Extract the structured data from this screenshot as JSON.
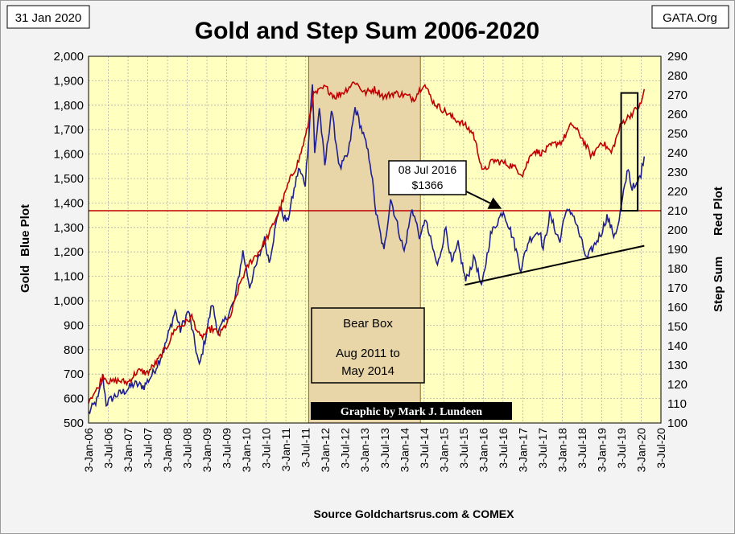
{
  "header": {
    "date": "31 Jan 2020",
    "title": "Gold and Step Sum 2006-2020",
    "source_tag": "GATA.Org"
  },
  "footer": {
    "source": "Source Goldchartsrus.com & COMEX",
    "credit": "Graphic by Mark J. Lundeen"
  },
  "colors": {
    "gold_line": "#1f1f8f",
    "step_sum_line": "#c00000",
    "plot_bg": "#ffffc0",
    "bear_box": "#e8d5a8",
    "reference_line": "#c00000"
  },
  "chart_data": {
    "type": "line",
    "title": "Gold and Step Sum 2006-2020",
    "x_tick_labels": [
      "3-Jan-06",
      "3-Jul-06",
      "3-Jan-07",
      "3-Jul-07",
      "3-Jan-08",
      "3-Jul-08",
      "3-Jan-09",
      "3-Jul-09",
      "3-Jan-10",
      "3-Jul-10",
      "3-Jan-11",
      "3-Jul-11",
      "3-Jan-12",
      "3-Jul-12",
      "3-Jan-13",
      "3-Jul-13",
      "3-Jan-14",
      "3-Jul-14",
      "3-Jan-15",
      "3-Jul-15",
      "3-Jan-16",
      "3-Jul-16",
      "3-Jan-17",
      "3-Jul-17",
      "3-Jan-18",
      "3-Jul-18",
      "3-Jan-19",
      "3-Jul-19",
      "3-Jan-20",
      "3-Jul-20"
    ],
    "xlim": [
      "2006-01-03",
      "2020-07-03"
    ],
    "y_left": {
      "label_top": "Gold",
      "label_bottom": "Blue Plot",
      "lim": [
        500,
        2000
      ],
      "ticks": [
        "500",
        "600",
        "700",
        "800",
        "900",
        "1,000",
        "1,100",
        "1,200",
        "1,300",
        "1,400",
        "1,500",
        "1,600",
        "1,700",
        "1,800",
        "1,900",
        "2,000"
      ]
    },
    "y_right": {
      "label_top": "Red Plot",
      "label_bottom": "Step Sum",
      "lim": [
        100,
        290
      ],
      "ticks": [
        "100",
        "110",
        "120",
        "130",
        "140",
        "150",
        "160",
        "170",
        "180",
        "190",
        "200",
        "210",
        "220",
        "230",
        "240",
        "250",
        "260",
        "270",
        "280",
        "290"
      ]
    },
    "grid": true,
    "series": [
      {
        "name": "Blue Plot",
        "axis": "left",
        "color": "#1f1f8f",
        "points": [
          [
            "2006-01-03",
            540
          ],
          [
            "2006-04-01",
            600
          ],
          [
            "2006-05-15",
            690
          ],
          [
            "2006-06-15",
            580
          ],
          [
            "2006-09-01",
            610
          ],
          [
            "2006-12-01",
            630
          ],
          [
            "2007-03-01",
            660
          ],
          [
            "2007-06-01",
            650
          ],
          [
            "2007-09-01",
            710
          ],
          [
            "2007-12-01",
            800
          ],
          [
            "2008-03-15",
            960
          ],
          [
            "2008-05-01",
            880
          ],
          [
            "2008-07-15",
            960
          ],
          [
            "2008-10-24",
            730
          ],
          [
            "2008-12-15",
            840
          ],
          [
            "2009-02-20",
            990
          ],
          [
            "2009-04-15",
            870
          ],
          [
            "2009-07-01",
            930
          ],
          [
            "2009-09-15",
            1000
          ],
          [
            "2009-12-01",
            1200
          ],
          [
            "2010-02-01",
            1060
          ],
          [
            "2010-06-20",
            1250
          ],
          [
            "2010-08-01",
            1160
          ],
          [
            "2010-11-01",
            1380
          ],
          [
            "2011-01-15",
            1320
          ],
          [
            "2011-04-30",
            1540
          ],
          [
            "2011-07-01",
            1480
          ],
          [
            "2011-09-05",
            1890
          ],
          [
            "2011-09-26",
            1600
          ],
          [
            "2011-11-08",
            1790
          ],
          [
            "2011-12-29",
            1550
          ],
          [
            "2012-02-28",
            1780
          ],
          [
            "2012-05-15",
            1540
          ],
          [
            "2012-08-01",
            1600
          ],
          [
            "2012-10-04",
            1790
          ],
          [
            "2012-12-31",
            1660
          ],
          [
            "2013-02-20",
            1570
          ],
          [
            "2013-04-15",
            1360
          ],
          [
            "2013-06-28",
            1200
          ],
          [
            "2013-08-28",
            1420
          ],
          [
            "2013-12-31",
            1200
          ],
          [
            "2014-03-15",
            1380
          ],
          [
            "2014-06-01",
            1250
          ],
          [
            "2014-07-10",
            1340
          ],
          [
            "2014-11-05",
            1140
          ],
          [
            "2015-01-22",
            1300
          ],
          [
            "2015-03-17",
            1150
          ],
          [
            "2015-05-15",
            1230
          ],
          [
            "2015-07-24",
            1080
          ],
          [
            "2015-10-15",
            1180
          ],
          [
            "2015-12-17",
            1050
          ],
          [
            "2016-03-10",
            1270
          ],
          [
            "2016-07-06",
            1370
          ],
          [
            "2016-10-01",
            1260
          ],
          [
            "2016-12-15",
            1130
          ],
          [
            "2017-02-28",
            1250
          ],
          [
            "2017-06-06",
            1290
          ],
          [
            "2017-07-10",
            1210
          ],
          [
            "2017-09-08",
            1350
          ],
          [
            "2017-12-12",
            1240
          ],
          [
            "2018-01-25",
            1360
          ],
          [
            "2018-04-11",
            1360
          ],
          [
            "2018-08-16",
            1170
          ],
          [
            "2018-12-31",
            1280
          ],
          [
            "2019-02-20",
            1345
          ],
          [
            "2019-04-23",
            1270
          ],
          [
            "2019-06-01",
            1300
          ],
          [
            "2019-09-04",
            1550
          ],
          [
            "2019-10-01",
            1470
          ],
          [
            "2019-11-12",
            1460
          ],
          [
            "2019-12-31",
            1520
          ],
          [
            "2020-01-31",
            1590
          ]
        ]
      },
      {
        "name": "Red Plot",
        "axis": "right",
        "color": "#c00000",
        "points": [
          [
            "2006-01-03",
            112
          ],
          [
            "2006-04-01",
            118
          ],
          [
            "2006-05-15",
            125
          ],
          [
            "2006-07-15",
            121
          ],
          [
            "2006-10-01",
            122
          ],
          [
            "2007-01-01",
            121
          ],
          [
            "2007-04-01",
            127
          ],
          [
            "2007-07-01",
            126
          ],
          [
            "2007-10-01",
            132
          ],
          [
            "2008-01-01",
            140
          ],
          [
            "2008-03-15",
            149
          ],
          [
            "2008-06-01",
            151
          ],
          [
            "2008-08-15",
            155
          ],
          [
            "2008-11-01",
            144
          ],
          [
            "2009-02-15",
            149
          ],
          [
            "2009-05-01",
            146
          ],
          [
            "2009-08-01",
            154
          ],
          [
            "2009-11-15",
            174
          ],
          [
            "2010-02-01",
            183
          ],
          [
            "2010-05-01",
            189
          ],
          [
            "2010-08-01",
            198
          ],
          [
            "2010-11-15",
            212
          ],
          [
            "2011-02-01",
            225
          ],
          [
            "2011-05-01",
            236
          ],
          [
            "2011-07-15",
            251
          ],
          [
            "2011-09-15",
            270
          ],
          [
            "2012-01-01",
            274
          ],
          [
            "2012-04-01",
            269
          ],
          [
            "2012-07-01",
            272
          ],
          [
            "2012-10-01",
            277
          ],
          [
            "2013-01-01",
            271
          ],
          [
            "2013-04-01",
            273
          ],
          [
            "2013-07-01",
            269
          ],
          [
            "2013-10-01",
            271
          ],
          [
            "2014-01-01",
            270
          ],
          [
            "2014-04-01",
            268
          ],
          [
            "2014-07-01",
            276
          ],
          [
            "2014-10-01",
            266
          ],
          [
            "2015-01-01",
            262
          ],
          [
            "2015-04-01",
            258
          ],
          [
            "2015-07-01",
            255
          ],
          [
            "2015-10-01",
            250
          ],
          [
            "2016-01-01",
            230
          ],
          [
            "2016-04-01",
            236
          ],
          [
            "2016-07-01",
            235
          ],
          [
            "2016-10-01",
            233
          ],
          [
            "2017-01-01",
            229
          ],
          [
            "2017-04-01",
            241
          ],
          [
            "2017-07-01",
            240
          ],
          [
            "2017-10-01",
            244
          ],
          [
            "2018-01-01",
            246
          ],
          [
            "2018-04-01",
            255
          ],
          [
            "2018-07-01",
            248
          ],
          [
            "2018-10-01",
            238
          ],
          [
            "2019-01-01",
            246
          ],
          [
            "2019-04-01",
            240
          ],
          [
            "2019-07-01",
            255
          ],
          [
            "2019-10-01",
            260
          ],
          [
            "2020-01-01",
            265
          ],
          [
            "2020-01-31",
            273
          ]
        ]
      }
    ],
    "annotations": {
      "bear_box": {
        "start": "2011-08-01",
        "end": "2014-05-31",
        "text": [
          "Bear Box",
          "Aug 2011 to",
          "May 2014"
        ]
      },
      "callout": {
        "text": [
          "08 Jul 2016",
          "$1366"
        ],
        "points_to": [
          "2016-07-08",
          1366
        ]
      },
      "reference_line": {
        "axis": "right",
        "value": 210
      },
      "trend_line": {
        "from": [
          "2015-07-15",
          1065
        ],
        "to": [
          "2020-01-31",
          1225
        ]
      },
      "highlight_box": {
        "from": "2019-07-01",
        "to": "2019-12-01",
        "y_right_range": [
          210,
          271
        ]
      }
    }
  }
}
